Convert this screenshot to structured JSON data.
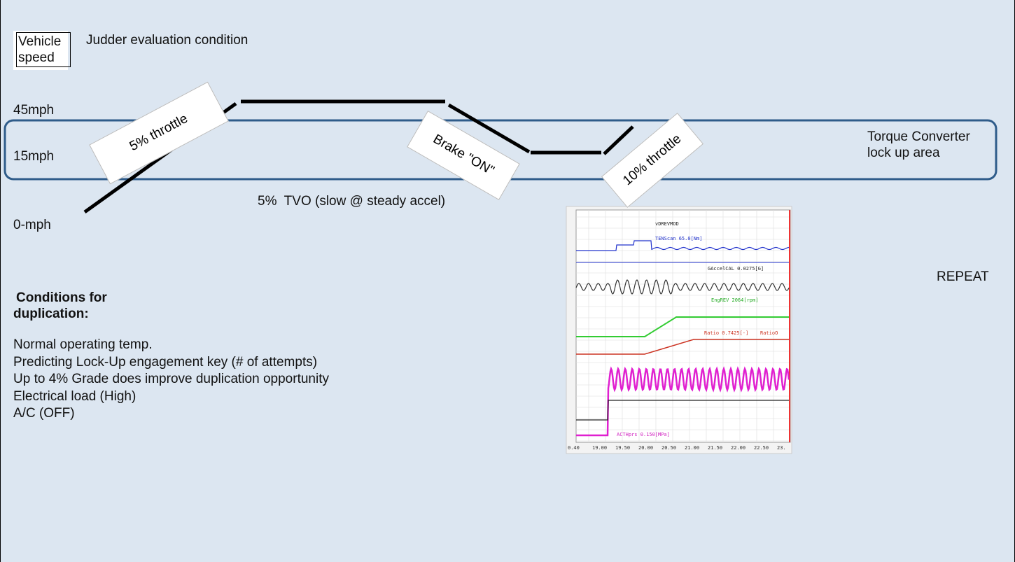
{
  "header": {
    "box_label": "Vehicle speed",
    "title": "Judder evaluation condition"
  },
  "speed_levels": [
    "45mph",
    "15mph",
    "0-mph"
  ],
  "phase_labels": [
    "5% throttle",
    "Brake \"ON\"",
    "10% throttle"
  ],
  "lockup_area": "Torque Converter lock up area",
  "tvo_note": "5%  TVO (slow @ steady accel)",
  "repeat": "REPEAT",
  "conditions": {
    "heading": "Conditions for duplication:",
    "items": [
      "Normal operating temp.",
      "Predicting Lock-Up engagement key (# of attempts)",
      "Up to 4% Grade does improve duplication opportunity",
      "Electrical load (High)",
      "A/C (OFF)"
    ]
  },
  "scope": {
    "signals": [
      "vDREVMOD",
      "TENScan 65.0[Nm]",
      "GAccelCAL 0.0275[G]",
      "EngREV 2064[rpm]",
      "Ratio 0.7425[-]",
      "RatioO",
      "ACTHprs 0.150[MPa]"
    ],
    "x_ticks": [
      "0.40",
      "19.00",
      "19.50",
      "20.00",
      "20.50",
      "21.00",
      "21.50",
      "22.00",
      "22.50",
      "23."
    ]
  }
}
